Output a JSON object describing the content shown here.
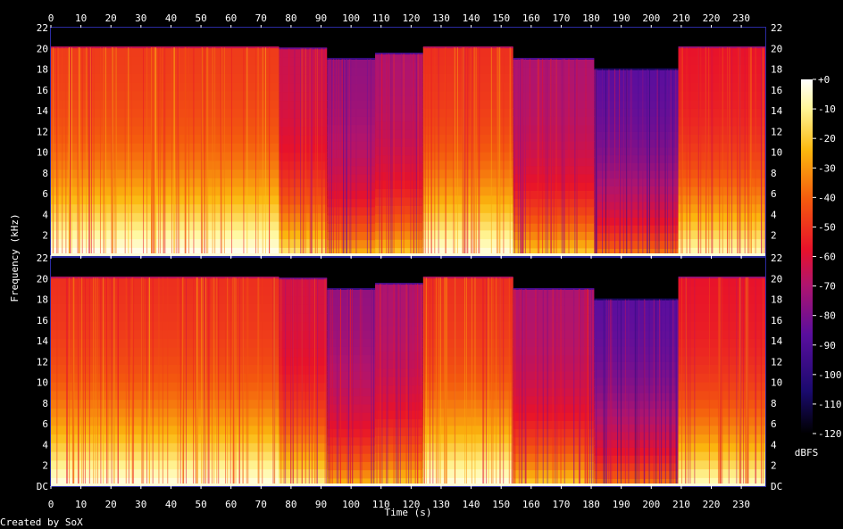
{
  "footer": {
    "credit": "Created by SoX"
  },
  "chart_data": {
    "type": "heatmap",
    "xlabel": "Time (s)",
    "ylabel": "Frequency (kHz)",
    "colorbar_label": "dBFS",
    "xlim": [
      0,
      238
    ],
    "ylim": [
      0,
      22
    ],
    "zlim": [
      -120,
      0
    ],
    "x_ticks": [
      "0",
      "10",
      "20",
      "30",
      "40",
      "50",
      "60",
      "70",
      "80",
      "90",
      "100",
      "110",
      "120",
      "130",
      "140",
      "150",
      "160",
      "170",
      "180",
      "190",
      "200",
      "210",
      "220",
      "230"
    ],
    "y_ticks_top": [
      "2",
      "4",
      "6",
      "8",
      "10",
      "12",
      "14",
      "16",
      "18",
      "20",
      "22"
    ],
    "y_ticks_bottom": [
      "DC",
      "2",
      "4",
      "6",
      "8",
      "10",
      "12",
      "14",
      "16",
      "18",
      "20",
      "22"
    ],
    "colorbar_ticks": [
      "+0",
      "-10",
      "-20",
      "-30",
      "-40",
      "-50",
      "-60",
      "-70",
      "-80",
      "-90",
      "-100",
      "-110",
      "-120"
    ],
    "colormap": [
      "#000000",
      "#1a0a6e",
      "#5a0e9e",
      "#b0146e",
      "#e8122a",
      "#f45a0e",
      "#fbb80e",
      "#fff79a",
      "#ffffff"
    ],
    "channels": [
      {
        "segments": [
          {
            "t0": 0,
            "t1": 76,
            "cutoff_khz": 20.1,
            "level": 0.62
          },
          {
            "t0": 76,
            "t1": 92,
            "cutoff_khz": 20.0,
            "level": 0.48
          },
          {
            "t0": 92,
            "t1": 108,
            "cutoff_khz": 19.0,
            "level": 0.38
          },
          {
            "t0": 108,
            "t1": 124,
            "cutoff_khz": 19.5,
            "level": 0.42
          },
          {
            "t0": 124,
            "t1": 154,
            "cutoff_khz": 20.1,
            "level": 0.6
          },
          {
            "t0": 154,
            "t1": 181,
            "cutoff_khz": 19.0,
            "level": 0.42
          },
          {
            "t0": 181,
            "t1": 209,
            "cutoff_khz": 18.0,
            "level": 0.3
          },
          {
            "t0": 209,
            "t1": 238,
            "cutoff_khz": 20.1,
            "level": 0.55
          }
        ]
      },
      {
        "segments": [
          {
            "t0": 0,
            "t1": 76,
            "cutoff_khz": 20.1,
            "level": 0.6
          },
          {
            "t0": 76,
            "t1": 92,
            "cutoff_khz": 20.0,
            "level": 0.5
          },
          {
            "t0": 92,
            "t1": 108,
            "cutoff_khz": 19.0,
            "level": 0.38
          },
          {
            "t0": 108,
            "t1": 124,
            "cutoff_khz": 19.5,
            "level": 0.42
          },
          {
            "t0": 124,
            "t1": 154,
            "cutoff_khz": 20.1,
            "level": 0.6
          },
          {
            "t0": 154,
            "t1": 181,
            "cutoff_khz": 19.0,
            "level": 0.42
          },
          {
            "t0": 181,
            "t1": 209,
            "cutoff_khz": 18.0,
            "level": 0.3
          },
          {
            "t0": 209,
            "t1": 238,
            "cutoff_khz": 20.1,
            "level": 0.55
          }
        ]
      }
    ]
  }
}
